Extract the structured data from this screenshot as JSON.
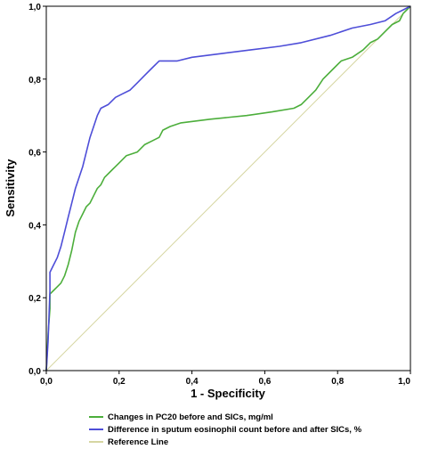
{
  "chart_data": {
    "type": "line",
    "title": "",
    "xlabel": "1 - Specificity",
    "ylabel": "Sensitivity",
    "xlim": [
      0,
      1
    ],
    "ylim": [
      0,
      1
    ],
    "grid": false,
    "legend_position": "bottom-left",
    "x_tick_labels": [
      "0,0",
      "0,2",
      "0,4",
      "0,6",
      "0,8",
      "1,0"
    ],
    "y_tick_labels": [
      "0,0",
      "0,2",
      "0,4",
      "0,6",
      "0,8",
      "1,0"
    ],
    "series": [
      {
        "name": "Changes in PC20 before and SICs, mg/ml",
        "color": "#4cae3b",
        "points": [
          [
            0.0,
            0.0
          ],
          [
            0.005,
            0.1
          ],
          [
            0.01,
            0.17
          ],
          [
            0.01,
            0.21
          ],
          [
            0.02,
            0.22
          ],
          [
            0.03,
            0.23
          ],
          [
            0.04,
            0.24
          ],
          [
            0.05,
            0.26
          ],
          [
            0.06,
            0.29
          ],
          [
            0.07,
            0.33
          ],
          [
            0.08,
            0.38
          ],
          [
            0.09,
            0.41
          ],
          [
            0.1,
            0.43
          ],
          [
            0.11,
            0.45
          ],
          [
            0.12,
            0.46
          ],
          [
            0.13,
            0.48
          ],
          [
            0.14,
            0.5
          ],
          [
            0.15,
            0.51
          ],
          [
            0.16,
            0.53
          ],
          [
            0.18,
            0.55
          ],
          [
            0.2,
            0.57
          ],
          [
            0.22,
            0.59
          ],
          [
            0.25,
            0.6
          ],
          [
            0.27,
            0.62
          ],
          [
            0.29,
            0.63
          ],
          [
            0.31,
            0.64
          ],
          [
            0.32,
            0.66
          ],
          [
            0.34,
            0.67
          ],
          [
            0.37,
            0.68
          ],
          [
            0.45,
            0.69
          ],
          [
            0.55,
            0.7
          ],
          [
            0.62,
            0.71
          ],
          [
            0.68,
            0.72
          ],
          [
            0.7,
            0.73
          ],
          [
            0.72,
            0.75
          ],
          [
            0.74,
            0.77
          ],
          [
            0.76,
            0.8
          ],
          [
            0.79,
            0.83
          ],
          [
            0.81,
            0.85
          ],
          [
            0.84,
            0.86
          ],
          [
            0.87,
            0.88
          ],
          [
            0.89,
            0.9
          ],
          [
            0.91,
            0.91
          ],
          [
            0.93,
            0.93
          ],
          [
            0.95,
            0.95
          ],
          [
            0.97,
            0.96
          ],
          [
            0.98,
            0.98
          ],
          [
            1.0,
            1.0
          ]
        ]
      },
      {
        "name": "Difference in sputum eosinophil count before and after SICs, %",
        "color": "#4e4ed8",
        "points": [
          [
            0.0,
            0.0
          ],
          [
            0.005,
            0.08
          ],
          [
            0.01,
            0.22
          ],
          [
            0.01,
            0.27
          ],
          [
            0.02,
            0.29
          ],
          [
            0.03,
            0.31
          ],
          [
            0.04,
            0.34
          ],
          [
            0.05,
            0.38
          ],
          [
            0.06,
            0.42
          ],
          [
            0.07,
            0.46
          ],
          [
            0.08,
            0.5
          ],
          [
            0.09,
            0.53
          ],
          [
            0.1,
            0.56
          ],
          [
            0.11,
            0.6
          ],
          [
            0.12,
            0.64
          ],
          [
            0.13,
            0.67
          ],
          [
            0.14,
            0.7
          ],
          [
            0.15,
            0.72
          ],
          [
            0.17,
            0.73
          ],
          [
            0.19,
            0.75
          ],
          [
            0.21,
            0.76
          ],
          [
            0.23,
            0.77
          ],
          [
            0.25,
            0.79
          ],
          [
            0.27,
            0.81
          ],
          [
            0.29,
            0.83
          ],
          [
            0.31,
            0.85
          ],
          [
            0.36,
            0.85
          ],
          [
            0.4,
            0.86
          ],
          [
            0.48,
            0.87
          ],
          [
            0.56,
            0.88
          ],
          [
            0.64,
            0.89
          ],
          [
            0.7,
            0.9
          ],
          [
            0.78,
            0.92
          ],
          [
            0.84,
            0.94
          ],
          [
            0.89,
            0.95
          ],
          [
            0.93,
            0.96
          ],
          [
            0.96,
            0.98
          ],
          [
            0.98,
            0.99
          ],
          [
            1.0,
            1.0
          ]
        ]
      },
      {
        "name": "Reference Line",
        "color": "#d6d6a2",
        "points": [
          [
            0,
            0
          ],
          [
            1,
            1
          ]
        ]
      }
    ]
  }
}
